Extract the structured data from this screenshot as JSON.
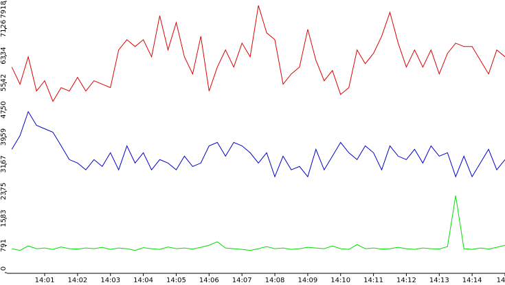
{
  "chart_data": {
    "type": "line",
    "x": [
      0,
      0.25,
      0.5,
      0.75,
      1,
      1.25,
      1.5,
      1.75,
      2,
      2.25,
      2.5,
      2.75,
      3,
      3.25,
      3.5,
      3.75,
      4,
      4.25,
      4.5,
      4.75,
      5,
      5.25,
      5.5,
      5.75,
      6,
      6.25,
      6.5,
      6.75,
      7,
      7.25,
      7.5,
      7.75,
      8,
      8.25,
      8.5,
      8.75,
      9,
      9.25,
      9.5,
      9.75,
      10,
      10.25,
      10.5,
      10.75,
      11,
      11.25,
      11.5,
      11.75,
      12,
      12.25,
      12.5,
      12.75,
      13,
      13.25,
      13.5,
      13.75,
      14,
      14.25,
      14.5,
      14.75,
      15
    ],
    "series": [
      {
        "color": "#dd0000",
        "values": [
          6000,
          5500,
          6300,
          5300,
          5600,
          5000,
          5400,
          5300,
          5700,
          5300,
          5600,
          5500,
          5400,
          6500,
          6800,
          6600,
          6800,
          6300,
          7500,
          6500,
          7300,
          6300,
          5800,
          6900,
          5300,
          6000,
          6500,
          6000,
          6700,
          6300,
          7800,
          7000,
          6800,
          5500,
          5800,
          6000,
          7100,
          6200,
          5600,
          5900,
          5200,
          5400,
          6500,
          6100,
          6400,
          6900,
          7600,
          6700,
          6000,
          6500,
          6000,
          6500,
          5800,
          6400,
          6700,
          6600,
          6600,
          6200,
          5800,
          6500,
          6300
        ]
      },
      {
        "color": "#0000cc",
        "values": [
          3600,
          4000,
          4700,
          4300,
          4200,
          4100,
          3700,
          3300,
          3200,
          3000,
          3300,
          3100,
          3500,
          3000,
          3700,
          3200,
          3500,
          3000,
          3300,
          3200,
          3000,
          3400,
          3100,
          3200,
          3700,
          3800,
          3400,
          3800,
          3700,
          3500,
          3200,
          3500,
          2800,
          3400,
          3000,
          3100,
          2800,
          3600,
          3000,
          3400,
          3800,
          3500,
          3300,
          3700,
          3500,
          3000,
          3700,
          3400,
          3300,
          3600,
          3200,
          3700,
          3400,
          3500,
          2800,
          3400,
          2800,
          3200,
          3600,
          3000,
          3300
        ]
      },
      {
        "color": "#00dd00",
        "values": [
          700,
          650,
          780,
          700,
          720,
          680,
          750,
          700,
          690,
          720,
          700,
          740,
          680,
          720,
          700,
          650,
          730,
          700,
          680,
          750,
          700,
          720,
          690,
          740,
          800,
          900,
          720,
          700,
          680,
          650,
          700,
          760,
          700,
          720,
          680,
          700,
          740,
          720,
          700,
          780,
          700,
          680,
          820,
          700,
          720,
          690,
          700,
          740,
          700,
          680,
          720,
          700,
          690,
          760,
          2250,
          700,
          680,
          720,
          690,
          740,
          800
        ]
      }
    ],
    "ylim": [
      0,
      7918
    ],
    "yticks": [
      0,
      791,
      1583,
      2375,
      3167,
      3959,
      4750,
      5542,
      6334,
      7126,
      7918
    ],
    "xlim": [
      -0.15,
      15
    ],
    "xticks": [
      {
        "value": 1,
        "label": "14:01"
      },
      {
        "value": 2,
        "label": "14:02"
      },
      {
        "value": 3,
        "label": "14:03"
      },
      {
        "value": 4,
        "label": "14:04"
      },
      {
        "value": 5,
        "label": "14:05"
      },
      {
        "value": 6,
        "label": "14:06"
      },
      {
        "value": 7,
        "label": "14:07"
      },
      {
        "value": 8,
        "label": "14:08"
      },
      {
        "value": 9,
        "label": "14:09"
      },
      {
        "value": 10,
        "label": "14:10"
      },
      {
        "value": 11,
        "label": "14:11"
      },
      {
        "value": 12,
        "label": "14:12"
      },
      {
        "value": 13,
        "label": "14:13"
      },
      {
        "value": 14,
        "label": "14:14"
      },
      {
        "value": 15,
        "label": "14"
      }
    ]
  }
}
